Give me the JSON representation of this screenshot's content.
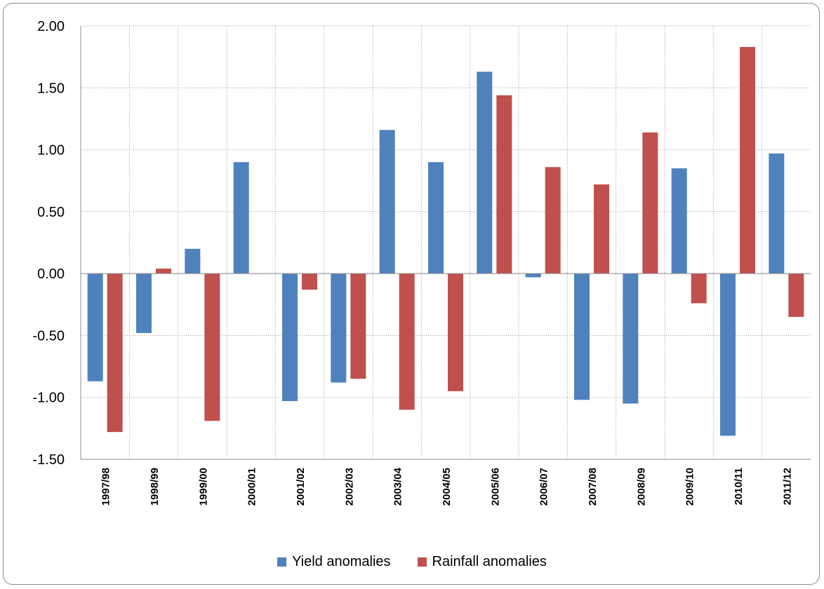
{
  "chart_data": {
    "type": "bar",
    "title": "",
    "xlabel": "",
    "ylabel": "",
    "ylim": [
      -1.5,
      2.0
    ],
    "yticks": [
      "2.00",
      "1.50",
      "1.00",
      "0.50",
      "0.00",
      "-0.50",
      "-1.00",
      "-1.50"
    ],
    "ytick_values": [
      2.0,
      1.5,
      1.0,
      0.5,
      0.0,
      -0.5,
      -1.0,
      -1.5
    ],
    "grid": "dotted, horizontal and vertical",
    "legend_position": "bottom",
    "categories": [
      "1997/98",
      "1998/99",
      "1999/00",
      "2000/01",
      "2001/02",
      "2002/03",
      "2003/04",
      "2004/05",
      "2005/06",
      "2006/07",
      "2007/08",
      "2008/09",
      "2009/10",
      "2010/11",
      "2011/12"
    ],
    "series": [
      {
        "name": "Yield anomalies",
        "color": "#4f81bd",
        "values": [
          -0.87,
          -0.48,
          0.2,
          0.9,
          -1.03,
          -0.88,
          1.16,
          0.9,
          1.63,
          -0.03,
          -1.02,
          -1.05,
          0.85,
          -1.31,
          0.97
        ]
      },
      {
        "name": "Rainfall anomalies",
        "color": "#c0504d",
        "values": [
          -1.28,
          0.04,
          -1.19,
          0.0,
          -0.13,
          -0.85,
          -1.1,
          -0.95,
          1.44,
          0.86,
          0.72,
          1.14,
          -0.24,
          1.83,
          -0.35
        ]
      }
    ]
  }
}
